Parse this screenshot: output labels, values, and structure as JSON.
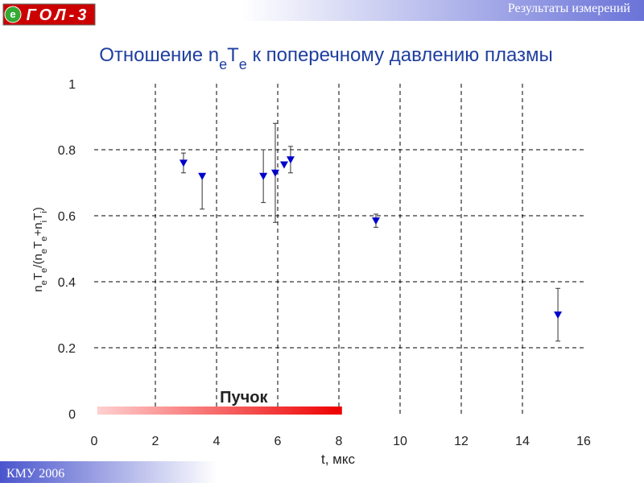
{
  "header": {
    "logo_letter": "e",
    "logo": "ГОЛ-3",
    "section": "Результаты измерений"
  },
  "footer": "КМУ 2006",
  "chart_data": {
    "type": "scatter",
    "title": [
      "Отношение n",
      "e",
      "T",
      "e",
      " к поперечному давлению плазмы"
    ],
    "y_label": [
      "n",
      "e",
      "T",
      "e",
      "/(n",
      "e",
      "T",
      "e",
      "+n",
      "i",
      "T",
      "i",
      ")"
    ],
    "x_label": "t, мкс",
    "x": [
      2.92,
      3.53,
      5.53,
      5.92,
      6.21,
      6.42,
      9.21,
      15.16
    ],
    "series": [
      {
        "color": "#0000cc",
        "values": [
          0.76,
          0.72,
          0.72,
          0.73,
          0.755,
          0.77,
          0.585,
          0.3
        ],
        "yerr_minus": [
          0.03,
          0.1,
          0.08,
          0.15,
          null,
          0.04,
          0.02,
          0.08
        ],
        "yerr_plus": [
          0.03,
          null,
          0.08,
          0.15,
          null,
          0.04,
          0.02,
          0.08
        ]
      }
    ],
    "xlim": [
      0,
      16
    ],
    "xticks": [
      0,
      2,
      4,
      6,
      8,
      10,
      12,
      14,
      16
    ],
    "ylim": [
      0,
      1
    ],
    "yticks": [
      0,
      0.2,
      0.4,
      0.6,
      0.8,
      1
    ],
    "grid": true,
    "annotations": [
      {
        "text": "Пучок",
        "x": [
          0.1,
          8.1
        ]
      }
    ]
  }
}
